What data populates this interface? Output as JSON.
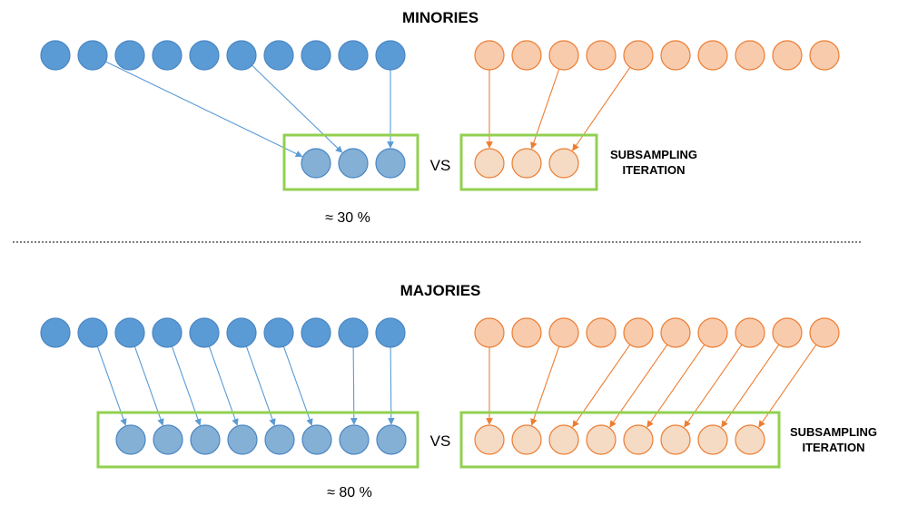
{
  "colors": {
    "blue_fill": "#5b9bd5",
    "blue_stroke": "#4a86c3",
    "blue_light_fill": "#84b0d6",
    "blue_arrow": "#5b9bd5",
    "orange_fill": "#f8cbad",
    "orange_stroke": "#ed7d31",
    "orange_light_fill": "#f5dac4",
    "orange_arrow": "#ed7d31",
    "box_stroke": "#92d050",
    "separator": "#000000"
  },
  "sections": [
    {
      "title": "MINORIES",
      "vs_label": "VS",
      "percent_label": "≈ 30 %",
      "side_label_line1": "SUBSAMPLING",
      "side_label_line2": "ITERATION",
      "source_count": 10,
      "sampled_count": 3,
      "blue_links": [
        [
          1,
          0
        ],
        [
          5,
          1
        ],
        [
          9,
          2
        ]
      ],
      "orange_links": [
        [
          0,
          0
        ],
        [
          2,
          1
        ],
        [
          4,
          2
        ]
      ]
    },
    {
      "title": "MAJORIES",
      "vs_label": "VS",
      "percent_label": "≈ 80 %",
      "side_label_line1": "SUBSAMPLING",
      "side_label_line2": "ITERATION",
      "source_count": 10,
      "sampled_count": 8,
      "blue_links": [
        [
          1,
          0
        ],
        [
          2,
          1
        ],
        [
          3,
          2
        ],
        [
          4,
          3
        ],
        [
          5,
          4
        ],
        [
          6,
          5
        ],
        [
          8,
          6
        ],
        [
          9,
          7
        ]
      ],
      "orange_links": [
        [
          0,
          0
        ],
        [
          2,
          1
        ],
        [
          4,
          2
        ],
        [
          5,
          3
        ],
        [
          6,
          4
        ],
        [
          7,
          5
        ],
        [
          8,
          6
        ],
        [
          9,
          7
        ]
      ]
    }
  ]
}
